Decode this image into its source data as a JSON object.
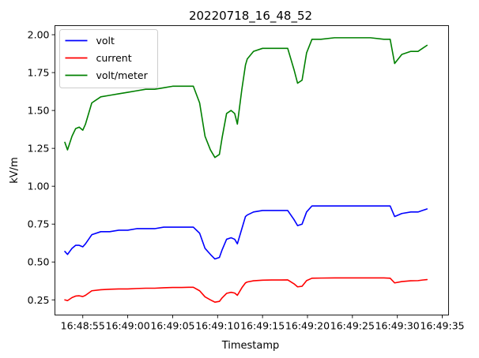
{
  "chart_data": {
    "type": "line",
    "title": "20220718_16_48_52",
    "xlabel": "Timestamp",
    "ylabel": "kV/m",
    "x_unit": "time (HH:MM:SS)",
    "x_ticks": [
      "16:48:55",
      "16:49:00",
      "16:49:05",
      "16:49:10",
      "16:49:15",
      "16:49:20",
      "16:49:25",
      "16:49:30",
      "16:49:35"
    ],
    "y_ticks": [
      "0.25",
      "0.50",
      "0.75",
      "1.00",
      "1.25",
      "1.50",
      "1.75",
      "2.00"
    ],
    "xlim": [
      "16:48:51.9",
      "16:49:35.7"
    ],
    "ylim": [
      0.15,
      2.06
    ],
    "grid": false,
    "legend": "upper-left",
    "x": [
      "16:48:53.0",
      "16:48:53.3",
      "16:48:53.8",
      "16:48:54.2",
      "16:48:54.6",
      "16:48:55.0",
      "16:48:55.3",
      "16:48:56.0",
      "16:48:57.0",
      "16:48:58.0",
      "16:48:59.0",
      "16:49:00.0",
      "16:49:01.0",
      "16:49:02.0",
      "16:49:03.0",
      "16:49:04.0",
      "16:49:05.0",
      "16:49:06.0",
      "16:49:06.8",
      "16:49:07.3",
      "16:49:08.0",
      "16:49:08.6",
      "16:49:09.2",
      "16:49:09.7",
      "16:49:10.2",
      "16:49:10.5",
      "16:49:11.0",
      "16:49:11.5",
      "16:49:11.9",
      "16:49:12.2",
      "16:49:12.7",
      "16:49:13.1",
      "16:49:13.3",
      "16:49:14.0",
      "16:49:15.0",
      "16:49:16.0",
      "16:49:17.0",
      "16:49:17.8",
      "16:49:18.5",
      "16:49:18.9",
      "16:49:19.4",
      "16:49:19.9",
      "16:49:20.5",
      "16:49:21.5",
      "16:49:23.0",
      "16:49:25.0",
      "16:49:27.0",
      "16:49:28.5",
      "16:49:29.2",
      "16:49:29.7",
      "16:49:30.5",
      "16:49:31.5",
      "16:49:32.3",
      "16:49:32.8",
      "16:49:33.3"
    ],
    "series": [
      {
        "name": "volt",
        "color": "#0000ff",
        "values": [
          0.57,
          0.55,
          0.59,
          0.61,
          0.61,
          0.6,
          0.62,
          0.68,
          0.7,
          0.7,
          0.71,
          0.71,
          0.72,
          0.72,
          0.72,
          0.73,
          0.73,
          0.73,
          0.73,
          0.73,
          0.69,
          0.59,
          0.55,
          0.52,
          0.53,
          0.58,
          0.65,
          0.66,
          0.65,
          0.62,
          0.72,
          0.8,
          0.81,
          0.83,
          0.84,
          0.84,
          0.84,
          0.84,
          0.78,
          0.74,
          0.75,
          0.83,
          0.87,
          0.87,
          0.87,
          0.87,
          0.87,
          0.87,
          0.87,
          0.8,
          0.82,
          0.83,
          0.83,
          0.84,
          0.85
        ]
      },
      {
        "name": "current",
        "color": "#ff0000",
        "values": [
          0.25,
          0.245,
          0.265,
          0.275,
          0.277,
          0.272,
          0.28,
          0.31,
          0.317,
          0.32,
          0.322,
          0.322,
          0.325,
          0.327,
          0.327,
          0.33,
          0.332,
          0.332,
          0.333,
          0.333,
          0.31,
          0.27,
          0.25,
          0.235,
          0.24,
          0.263,
          0.293,
          0.3,
          0.295,
          0.28,
          0.33,
          0.362,
          0.368,
          0.376,
          0.38,
          0.381,
          0.381,
          0.382,
          0.356,
          0.336,
          0.34,
          0.377,
          0.393,
          0.394,
          0.395,
          0.395,
          0.395,
          0.395,
          0.393,
          0.362,
          0.371,
          0.376,
          0.377,
          0.381,
          0.384
        ]
      },
      {
        "name": "volt/meter",
        "color": "#008000",
        "values": [
          1.29,
          1.24,
          1.33,
          1.38,
          1.39,
          1.37,
          1.41,
          1.55,
          1.59,
          1.6,
          1.61,
          1.62,
          1.63,
          1.64,
          1.64,
          1.65,
          1.66,
          1.66,
          1.66,
          1.66,
          1.55,
          1.33,
          1.24,
          1.19,
          1.21,
          1.32,
          1.48,
          1.5,
          1.48,
          1.41,
          1.64,
          1.8,
          1.84,
          1.89,
          1.91,
          1.91,
          1.91,
          1.91,
          1.77,
          1.68,
          1.7,
          1.88,
          1.97,
          1.97,
          1.98,
          1.98,
          1.98,
          1.97,
          1.97,
          1.81,
          1.87,
          1.89,
          1.89,
          1.91,
          1.93
        ]
      }
    ]
  }
}
